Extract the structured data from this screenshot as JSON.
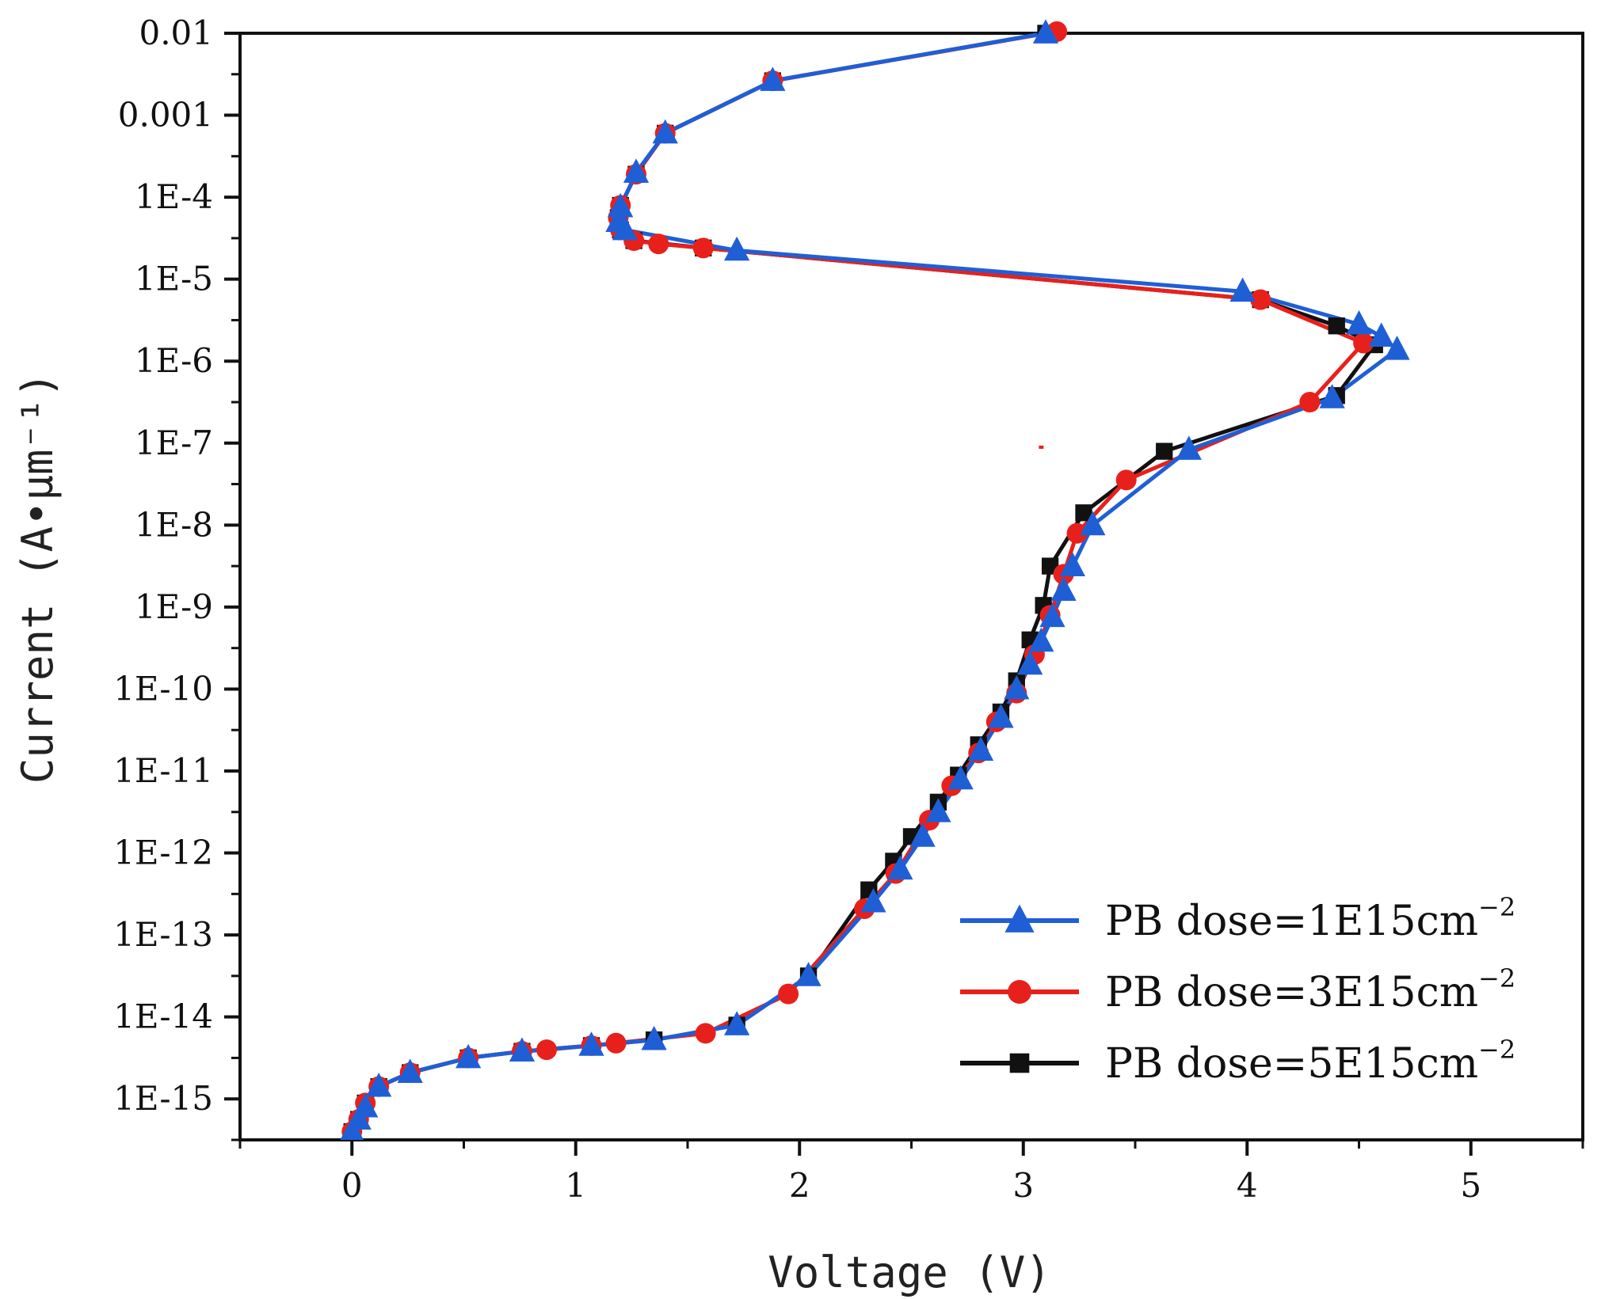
{
  "chart_data": {
    "type": "line",
    "title": "",
    "xlabel": "Voltage (V)",
    "ylabel": "Current (A•μm⁻¹)",
    "xlim": [
      -0.5,
      5.5
    ],
    "ylim_log10": [
      -15.5,
      -2
    ],
    "y_scale": "log",
    "x_ticks": [
      0,
      1,
      2,
      3,
      4,
      5
    ],
    "x_tick_labels": [
      "0",
      "1",
      "2",
      "3",
      "4",
      "5"
    ],
    "y_ticks_log10": [
      -2,
      -3,
      -4,
      -5,
      -6,
      -7,
      -8,
      -9,
      -10,
      -11,
      -12,
      -13,
      -14,
      -15
    ],
    "y_tick_labels": [
      "0.01",
      "0.001",
      "1E-4",
      "1E-5",
      "1E-6",
      "1E-7",
      "1E-8",
      "1E-9",
      "1E-10",
      "1E-11",
      "1E-12",
      "1E-13",
      "1E-14",
      "1E-15"
    ],
    "legend": {
      "position": "bottom-right",
      "entries": [
        {
          "prefix": "PB dose=1E15cm",
          "sup": "−2"
        },
        {
          "prefix": "PB dose=3E15cm",
          "sup": "−2"
        },
        {
          "prefix": "PB dose=5E15cm",
          "sup": "−2"
        }
      ]
    },
    "stray_mark": {
      "x": 3.08,
      "log10y": -7.05,
      "color": "#e8201c"
    },
    "series": [
      {
        "name": "PB dose=1E15cm-2",
        "color": "#1f5fd6",
        "marker": "triangle",
        "points": [
          [
            0.0,
            -15.4
          ],
          [
            0.03,
            -15.25
          ],
          [
            0.06,
            -15.1
          ],
          [
            0.12,
            -14.85
          ],
          [
            0.26,
            -14.68
          ],
          [
            0.52,
            -14.5
          ],
          [
            0.76,
            -14.42
          ],
          [
            1.07,
            -14.35
          ],
          [
            1.35,
            -14.28
          ],
          [
            1.72,
            -14.1
          ],
          [
            2.04,
            -13.5
          ],
          [
            2.33,
            -12.6
          ],
          [
            2.45,
            -12.2
          ],
          [
            2.55,
            -11.8
          ],
          [
            2.62,
            -11.5
          ],
          [
            2.72,
            -11.1
          ],
          [
            2.81,
            -10.75
          ],
          [
            2.9,
            -10.35
          ],
          [
            2.97,
            -10.0
          ],
          [
            3.03,
            -9.7
          ],
          [
            3.08,
            -9.42
          ],
          [
            3.13,
            -9.12
          ],
          [
            3.18,
            -8.8
          ],
          [
            3.22,
            -8.5
          ],
          [
            3.31,
            -8.0
          ],
          [
            3.74,
            -7.08
          ],
          [
            4.38,
            -6.45
          ],
          [
            4.67,
            -5.86
          ],
          [
            4.6,
            -5.7
          ],
          [
            4.5,
            -5.55
          ],
          [
            3.98,
            -5.15
          ],
          [
            1.72,
            -4.65
          ],
          [
            1.22,
            -4.4
          ],
          [
            1.19,
            -4.3
          ],
          [
            1.2,
            -4.12
          ],
          [
            1.27,
            -3.7
          ],
          [
            1.4,
            -3.22
          ],
          [
            1.88,
            -2.58
          ],
          [
            3.1,
            -2.0
          ]
        ]
      },
      {
        "name": "PB dose=3E15cm-2",
        "color": "#e8201c",
        "marker": "circle",
        "points": [
          [
            0.0,
            -15.4
          ],
          [
            0.03,
            -15.25
          ],
          [
            0.06,
            -15.05
          ],
          [
            0.12,
            -14.85
          ],
          [
            0.26,
            -14.68
          ],
          [
            0.52,
            -14.5
          ],
          [
            0.76,
            -14.42
          ],
          [
            0.87,
            -14.4
          ],
          [
            1.07,
            -14.35
          ],
          [
            1.18,
            -14.32
          ],
          [
            1.58,
            -14.2
          ],
          [
            1.95,
            -13.72
          ],
          [
            2.29,
            -12.68
          ],
          [
            2.43,
            -12.25
          ],
          [
            2.58,
            -11.6
          ],
          [
            2.68,
            -11.18
          ],
          [
            2.8,
            -10.78
          ],
          [
            2.88,
            -10.4
          ],
          [
            2.97,
            -10.05
          ],
          [
            3.05,
            -9.58
          ],
          [
            3.12,
            -9.1
          ],
          [
            3.18,
            -8.6
          ],
          [
            3.24,
            -8.1
          ],
          [
            3.46,
            -7.45
          ],
          [
            4.28,
            -6.5
          ],
          [
            4.52,
            -5.78
          ],
          [
            4.06,
            -5.25
          ],
          [
            1.57,
            -4.62
          ],
          [
            1.37,
            -4.57
          ],
          [
            1.26,
            -4.53
          ],
          [
            1.2,
            -4.4
          ],
          [
            1.19,
            -4.25
          ],
          [
            1.2,
            -4.1
          ],
          [
            1.27,
            -3.72
          ],
          [
            1.4,
            -3.22
          ],
          [
            1.88,
            -2.58
          ],
          [
            3.15,
            -1.98
          ]
        ]
      },
      {
        "name": "PB dose=5E15cm-2",
        "color": "#111111",
        "marker": "square",
        "points": [
          [
            0.0,
            -15.4
          ],
          [
            0.03,
            -15.25
          ],
          [
            0.06,
            -15.05
          ],
          [
            0.12,
            -14.85
          ],
          [
            0.26,
            -14.68
          ],
          [
            0.52,
            -14.5
          ],
          [
            0.76,
            -14.42
          ],
          [
            1.07,
            -14.35
          ],
          [
            1.35,
            -14.28
          ],
          [
            1.72,
            -14.1
          ],
          [
            2.04,
            -13.5
          ],
          [
            2.31,
            -12.45
          ],
          [
            2.42,
            -12.1
          ],
          [
            2.5,
            -11.8
          ],
          [
            2.62,
            -11.38
          ],
          [
            2.71,
            -11.05
          ],
          [
            2.8,
            -10.68
          ],
          [
            2.9,
            -10.28
          ],
          [
            2.97,
            -9.9
          ],
          [
            3.03,
            -9.4
          ],
          [
            3.09,
            -8.98
          ],
          [
            3.12,
            -8.5
          ],
          [
            3.27,
            -7.85
          ],
          [
            3.63,
            -7.1
          ],
          [
            4.4,
            -6.42
          ],
          [
            4.57,
            -5.8
          ],
          [
            4.4,
            -5.57
          ],
          [
            4.06,
            -5.25
          ],
          [
            1.57,
            -4.62
          ],
          [
            1.26,
            -4.53
          ],
          [
            1.2,
            -4.4
          ],
          [
            1.19,
            -4.25
          ],
          [
            1.2,
            -4.1
          ],
          [
            1.27,
            -3.72
          ],
          [
            1.4,
            -3.22
          ],
          [
            1.88,
            -2.58
          ],
          [
            3.1,
            -2.0
          ]
        ]
      }
    ]
  }
}
